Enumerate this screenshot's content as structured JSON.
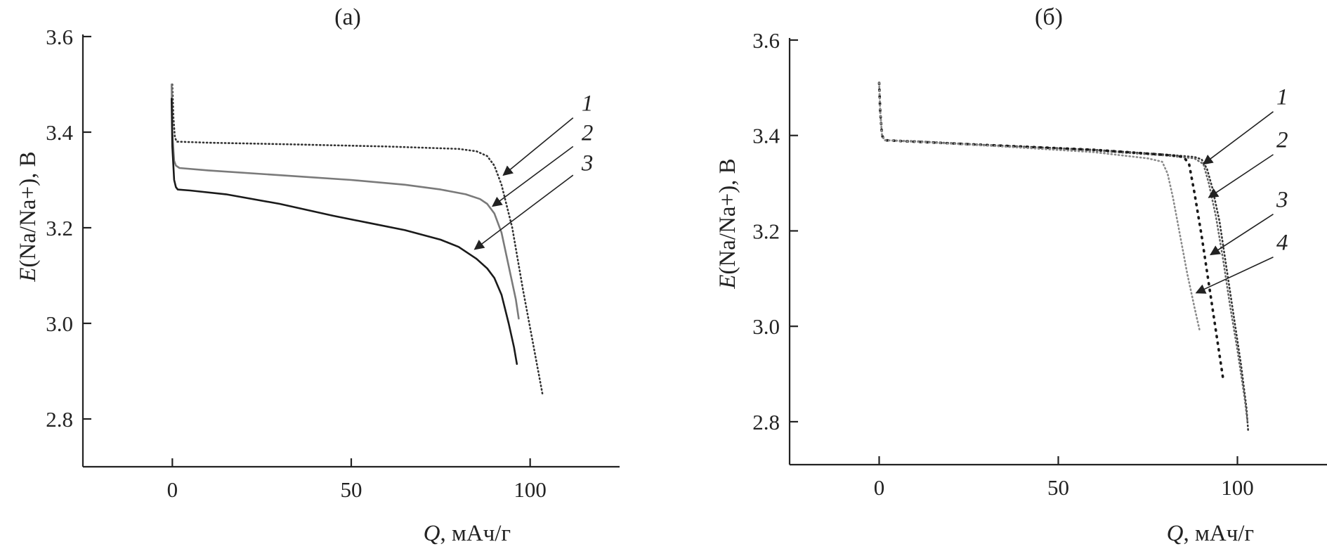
{
  "chart_data": [
    {
      "type": "line",
      "title": "(а)",
      "xlabel_symbol": "Q",
      "xlabel_unit": ", мАч/г",
      "ylabel_symbol": "E",
      "ylabel_rest": "(Na/Na+), В",
      "xlim": [
        -25,
        125
      ],
      "ylim": [
        2.7,
        3.6
      ],
      "x_ticks": [
        0,
        50,
        100
      ],
      "x_tick_labels": [
        "0",
        "50",
        "100"
      ],
      "y_ticks": [
        2.8,
        3.0,
        3.2,
        3.4,
        3.6
      ],
      "y_tick_labels": [
        "2.8",
        "3.0",
        "3.2",
        "3.4",
        "3.6"
      ],
      "series": [
        {
          "label": "1",
          "color": "#333333",
          "dash": "dotted",
          "x": [
            0,
            0.3,
            0.7,
            1.2,
            2,
            10,
            30,
            60,
            80,
            85,
            88,
            90,
            92,
            95,
            98,
            101,
            103.5
          ],
          "y": [
            3.5,
            3.43,
            3.39,
            3.38,
            3.38,
            3.378,
            3.375,
            3.37,
            3.365,
            3.36,
            3.35,
            3.33,
            3.29,
            3.2,
            3.07,
            2.95,
            2.85
          ]
        },
        {
          "label": "2",
          "color": "#7a7a7a",
          "dash": "solid",
          "x": [
            -0.2,
            0,
            0.5,
            1,
            2,
            10,
            30,
            50,
            65,
            75,
            82,
            86,
            88,
            90,
            92,
            94,
            96,
            96.8
          ],
          "y": [
            3.5,
            3.4,
            3.34,
            3.33,
            3.325,
            3.32,
            3.31,
            3.3,
            3.29,
            3.28,
            3.27,
            3.26,
            3.25,
            3.23,
            3.19,
            3.12,
            3.05,
            3.01
          ]
        },
        {
          "label": "3",
          "color": "#1a1a1a",
          "dash": "solid",
          "x": [
            -0.2,
            0,
            0.5,
            1,
            1.5,
            5,
            15,
            30,
            45,
            55,
            65,
            75,
            80,
            85,
            88,
            90,
            92,
            94,
            95.5,
            96.3
          ],
          "y": [
            3.47,
            3.37,
            3.3,
            3.285,
            3.28,
            3.278,
            3.27,
            3.25,
            3.225,
            3.21,
            3.195,
            3.175,
            3.16,
            3.135,
            3.115,
            3.095,
            3.06,
            3.0,
            2.95,
            2.915
          ]
        }
      ],
      "annotations": [
        {
          "text": "1",
          "x": 116,
          "y": 3.445,
          "arrow_from": [
            112,
            3.43
          ],
          "arrow_to": [
            92.5,
            3.31
          ]
        },
        {
          "text": "2",
          "x": 116,
          "y": 3.383,
          "arrow_from": [
            112,
            3.37
          ],
          "arrow_to": [
            89.5,
            3.245
          ]
        },
        {
          "text": "3",
          "x": 116,
          "y": 3.32,
          "arrow_from": [
            112,
            3.31
          ],
          "arrow_to": [
            84.5,
            3.155
          ]
        }
      ]
    },
    {
      "type": "line",
      "title": "(б)",
      "xlabel_symbol": "Q",
      "xlabel_unit": ", мАч/г",
      "ylabel_symbol": "E",
      "ylabel_rest": "(Na/Na+), В",
      "xlim": [
        -25,
        125
      ],
      "ylim": [
        2.71,
        3.6
      ],
      "x_ticks": [
        0,
        50,
        100
      ],
      "x_tick_labels": [
        "0",
        "50",
        "100"
      ],
      "y_ticks": [
        2.8,
        3.0,
        3.2,
        3.4,
        3.6
      ],
      "y_tick_labels": [
        "2.8",
        "3.0",
        "3.2",
        "3.4",
        "3.6"
      ],
      "series": [
        {
          "label": "1",
          "color": "#333333",
          "dash": "dotted",
          "x": [
            0,
            0.3,
            0.8,
            1.5,
            10,
            30,
            60,
            80,
            88,
            90,
            91.5,
            93,
            95,
            97,
            99,
            101,
            102.5,
            103
          ],
          "y": [
            3.51,
            3.45,
            3.4,
            3.39,
            3.388,
            3.38,
            3.37,
            3.36,
            3.355,
            3.35,
            3.33,
            3.29,
            3.22,
            3.12,
            3.02,
            2.92,
            2.83,
            2.78
          ]
        },
        {
          "label": "2",
          "color": "#666666",
          "dash": "dotted",
          "x": [
            0,
            0.3,
            0.8,
            1.5,
            10,
            30,
            60,
            80,
            88,
            90.5,
            92,
            94,
            96,
            98,
            100,
            102,
            102.8
          ],
          "y": [
            3.51,
            3.45,
            3.4,
            3.39,
            3.387,
            3.379,
            3.368,
            3.358,
            3.352,
            3.34,
            3.3,
            3.23,
            3.14,
            3.04,
            2.95,
            2.85,
            2.8
          ]
        },
        {
          "label": "3",
          "color": "#1a1a1a",
          "dash": "dotted-heavy",
          "x": [
            0,
            0.3,
            0.8,
            1.5,
            10,
            30,
            60,
            75,
            82,
            85,
            86.5,
            88,
            90,
            92,
            94,
            96
          ],
          "y": [
            3.51,
            3.45,
            3.4,
            3.39,
            3.387,
            3.38,
            3.37,
            3.362,
            3.358,
            3.355,
            3.34,
            3.28,
            3.19,
            3.09,
            2.99,
            2.89
          ]
        },
        {
          "label": "4",
          "color": "#8a8a8a",
          "dash": "dotted",
          "x": [
            0,
            0.3,
            0.8,
            1.5,
            10,
            30,
            60,
            75,
            79,
            80.5,
            82,
            84,
            86,
            88,
            89.5
          ],
          "y": [
            3.51,
            3.45,
            3.4,
            3.39,
            3.387,
            3.379,
            3.365,
            3.352,
            3.345,
            3.32,
            3.27,
            3.19,
            3.11,
            3.04,
            2.99
          ]
        }
      ],
      "annotations": [
        {
          "text": "1",
          "x": 112.5,
          "y": 3.465,
          "arrow_from": [
            110,
            3.45
          ],
          "arrow_to": [
            90.5,
            3.34
          ]
        },
        {
          "text": "2",
          "x": 112.5,
          "y": 3.375,
          "arrow_from": [
            110,
            3.36
          ],
          "arrow_to": [
            92,
            3.27
          ]
        },
        {
          "text": "3",
          "x": 112.5,
          "y": 3.25,
          "arrow_from": [
            110,
            3.235
          ],
          "arrow_to": [
            92.5,
            3.15
          ]
        },
        {
          "text": "4",
          "x": 112.5,
          "y": 3.16,
          "arrow_from": [
            110,
            3.145
          ],
          "arrow_to": [
            88.5,
            3.07
          ]
        }
      ]
    }
  ]
}
